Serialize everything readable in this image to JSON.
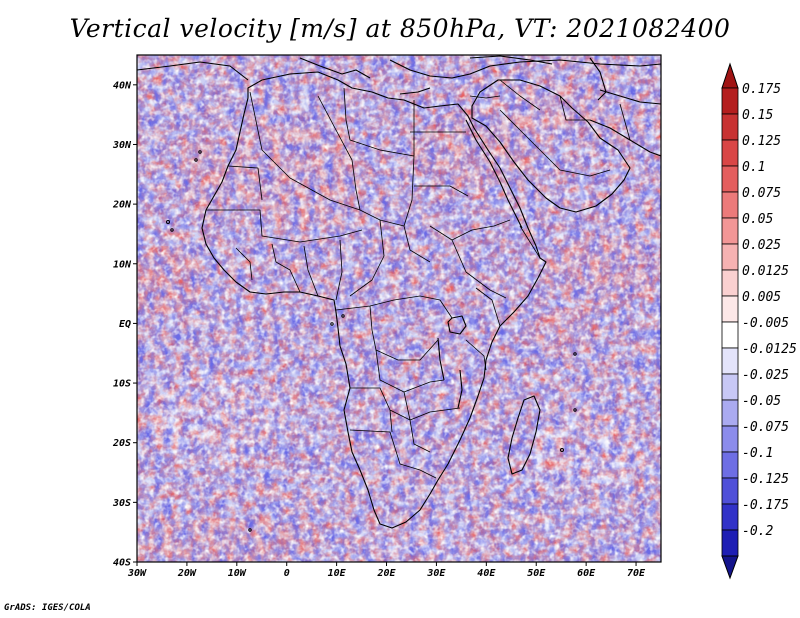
{
  "title": "Vertical velocity [m/s] at 850hPa, VT: 2021082400",
  "credit": "GrADS: IGES/COLA",
  "map": {
    "lon_range": [
      -30,
      75
    ],
    "lat_range": [
      -40,
      45
    ],
    "lon_ticks": [
      {
        "value": -30,
        "label": "30W"
      },
      {
        "value": -20,
        "label": "20W"
      },
      {
        "value": -10,
        "label": "10W"
      },
      {
        "value": 0,
        "label": "0"
      },
      {
        "value": 10,
        "label": "10E"
      },
      {
        "value": 20,
        "label": "20E"
      },
      {
        "value": 30,
        "label": "30E"
      },
      {
        "value": 40,
        "label": "40E"
      },
      {
        "value": 50,
        "label": "50E"
      },
      {
        "value": 60,
        "label": "60E"
      },
      {
        "value": 70,
        "label": "70E"
      }
    ],
    "lat_ticks": [
      {
        "value": 40,
        "label": "40N"
      },
      {
        "value": 30,
        "label": "30N"
      },
      {
        "value": 20,
        "label": "20N"
      },
      {
        "value": 10,
        "label": "10N"
      },
      {
        "value": 0,
        "label": "EQ"
      },
      {
        "value": -10,
        "label": "10S"
      },
      {
        "value": -20,
        "label": "20S"
      },
      {
        "value": -30,
        "label": "30S"
      },
      {
        "value": -40,
        "label": "40S"
      }
    ]
  },
  "colorbar": {
    "levels": [
      {
        "label": "0.175",
        "color": "#b41e1e"
      },
      {
        "label": "0.15",
        "color": "#c83232"
      },
      {
        "label": "0.125",
        "color": "#d94646"
      },
      {
        "label": "0.1",
        "color": "#e45e5e"
      },
      {
        "label": "0.075",
        "color": "#ec7a7a"
      },
      {
        "label": "0.05",
        "color": "#f29696"
      },
      {
        "label": "0.025",
        "color": "#f6b2b2"
      },
      {
        "label": "0.0125",
        "color": "#fad0d0"
      },
      {
        "label": "0.005",
        "color": "#fde8e8"
      },
      {
        "label": "-0.005",
        "color": "#ffffff"
      },
      {
        "label": "-0.0125",
        "color": "#e4e4fb"
      },
      {
        "label": "-0.025",
        "color": "#c8c8f5"
      },
      {
        "label": "-0.05",
        "color": "#aaaaf0"
      },
      {
        "label": "-0.075",
        "color": "#8c8ceb"
      },
      {
        "label": "-0.1",
        "color": "#6e6ee4"
      },
      {
        "label": "-0.125",
        "color": "#5050d8"
      },
      {
        "label": "-0.175",
        "color": "#3232c8"
      },
      {
        "label": "-0.2",
        "color": "#1e1eb4"
      }
    ],
    "top_color": "#a01414",
    "bottom_color": "#14148c"
  }
}
